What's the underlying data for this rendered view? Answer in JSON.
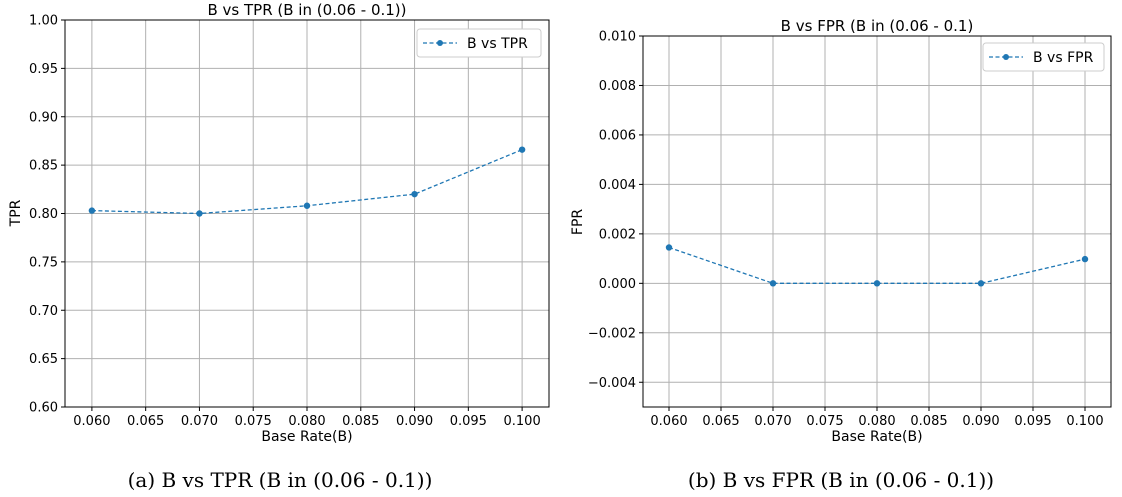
{
  "chart_data": [
    {
      "type": "line",
      "title": "B vs TPR (B in (0.06 - 0.1))",
      "xlabel": "Base Rate(B)",
      "ylabel": "TPR",
      "caption": "(a) B vs TPR (B in (0.06 - 0.1))",
      "xlim": [
        0.0575,
        0.1025
      ],
      "ylim": [
        0.6,
        1.0
      ],
      "x_ticks": [
        "0.060",
        "0.065",
        "0.070",
        "0.075",
        "0.080",
        "0.085",
        "0.090",
        "0.095",
        "0.100"
      ],
      "y_ticks": [
        "0.60",
        "0.65",
        "0.70",
        "0.75",
        "0.80",
        "0.85",
        "0.90",
        "0.95",
        "1.00"
      ],
      "grid": true,
      "legend_position": "top-right",
      "series": [
        {
          "name": "B vs TPR",
          "color": "#1f77b4",
          "x": [
            0.06,
            0.07,
            0.08,
            0.09,
            0.1
          ],
          "y": [
            0.803,
            0.8,
            0.808,
            0.82,
            0.866
          ]
        }
      ]
    },
    {
      "type": "line",
      "title": "B vs FPR (B in (0.06 - 0.1)",
      "xlabel": "Base Rate(B)",
      "ylabel": "FPR",
      "caption": "(b) B vs FPR (B in (0.06 - 0.1))",
      "xlim": [
        0.0575,
        0.1025
      ],
      "ylim": [
        -0.005,
        0.01
      ],
      "x_ticks": [
        "0.060",
        "0.065",
        "0.070",
        "0.075",
        "0.080",
        "0.085",
        "0.090",
        "0.095",
        "0.100"
      ],
      "y_ticks": [
        "−0.004",
        "−0.002",
        "0.000",
        "0.002",
        "0.004",
        "0.006",
        "0.008",
        "0.010"
      ],
      "grid": true,
      "legend_position": "top-right",
      "series": [
        {
          "name": "B vs FPR",
          "color": "#1f77b4",
          "x": [
            0.06,
            0.07,
            0.08,
            0.09,
            0.1
          ],
          "y": [
            0.00145,
            0.0,
            0.0,
            0.0,
            0.00098
          ]
        }
      ]
    }
  ]
}
